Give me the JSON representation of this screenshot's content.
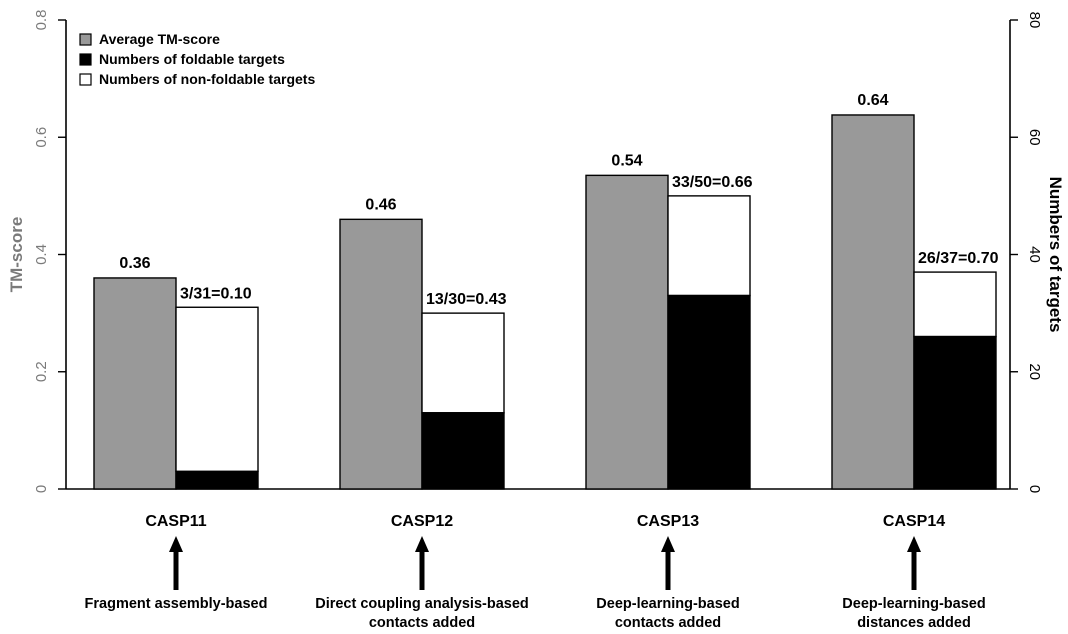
{
  "chart_data": {
    "type": "bar",
    "categories": [
      "CASP11",
      "CASP12",
      "CASP13",
      "CASP14"
    ],
    "methods": [
      [
        "Fragment assembly-based"
      ],
      [
        "Direct coupling analysis-based",
        "contacts added"
      ],
      [
        "Deep-learning-based",
        "contacts added"
      ],
      [
        "Deep-learning-based",
        "distances added"
      ]
    ],
    "series": [
      {
        "name": "Average TM-score",
        "axis": "left",
        "values": [
          0.36,
          0.46,
          0.535,
          0.638
        ],
        "labels": [
          "0.36",
          "0.46",
          "0.54",
          "0.64"
        ],
        "color": "#999999"
      },
      {
        "name": "Numbers of foldable targets",
        "axis": "right",
        "values": [
          3,
          13,
          33,
          26
        ],
        "color": "#000000"
      },
      {
        "name": "Numbers of non-foldable targets",
        "axis": "right",
        "values": [
          28,
          17,
          17,
          11
        ],
        "color": "#ffffff"
      }
    ],
    "ratio_labels": [
      "3/31=0.10",
      "13/30=0.43",
      "33/50=0.66",
      "26/37=0.70"
    ],
    "ylabel": "TM-score",
    "y2label": "Numbers of targets",
    "ylim": [
      0,
      0.8
    ],
    "y2lim": [
      0,
      80
    ],
    "yticks": [
      0,
      0.2,
      0.4,
      0.6,
      0.8
    ],
    "yticklabels": [
      "0",
      "0.2",
      "0.4",
      "0.6",
      "0.8"
    ],
    "y2ticks": [
      0,
      20,
      40,
      60,
      80
    ],
    "y2ticklabels": [
      "0",
      "20",
      "40",
      "60",
      "80"
    ],
    "legend_position": "top-left",
    "grid": false
  }
}
